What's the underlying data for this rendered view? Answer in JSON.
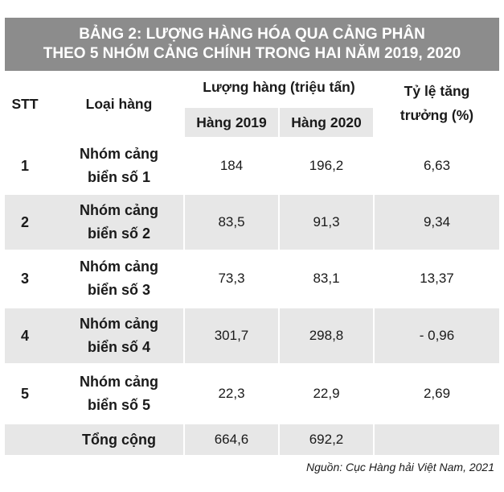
{
  "title": {
    "line1": "BẢNG 2: LƯỢNG HÀNG HÓA QUA CẢNG PHÂN",
    "line2": "THEO 5 NHÓM CẢNG CHÍNH TRONG HAI NĂM 2019, 2020"
  },
  "header": {
    "stt": "STT",
    "type": "Loại hàng",
    "volume_group": "Lượng hàng (triệu tấn)",
    "year_2019": "Hàng 2019",
    "year_2020": "Hàng 2020",
    "growth_line1": "Tỷ lệ tăng",
    "growth_line2": "trưởng (%)"
  },
  "rows": [
    {
      "stt": "1",
      "type_line1": "Nhóm cảng",
      "type_line2": "biển số 1",
      "v2019": "184",
      "v2020": "196,2",
      "growth": "6,63"
    },
    {
      "stt": "2",
      "type_line1": "Nhóm cảng",
      "type_line2": "biển số 2",
      "v2019": "83,5",
      "v2020": "91,3",
      "growth": "9,34"
    },
    {
      "stt": "3",
      "type_line1": "Nhóm cảng",
      "type_line2": "biển số 3",
      "v2019": "73,3",
      "v2020": "83,1",
      "growth": "13,37"
    },
    {
      "stt": "4",
      "type_line1": "Nhóm cảng",
      "type_line2": "biển số 4",
      "v2019": "301,7",
      "v2020": "298,8",
      "growth": "- 0,96"
    },
    {
      "stt": "5",
      "type_line1": "Nhóm cảng",
      "type_line2": "biển số 5",
      "v2019": "22,3",
      "v2020": "22,9",
      "growth": "2,69"
    }
  ],
  "total": {
    "label": "Tổng cộng",
    "v2019": "664,6",
    "v2020": "692,2"
  },
  "source": "Nguồn: Cục Hàng hải Việt Nam, 2021",
  "colors": {
    "title_bg": "#8c8c8c",
    "row_shade": "#e7e7e7",
    "text": "#1a1a1a"
  }
}
